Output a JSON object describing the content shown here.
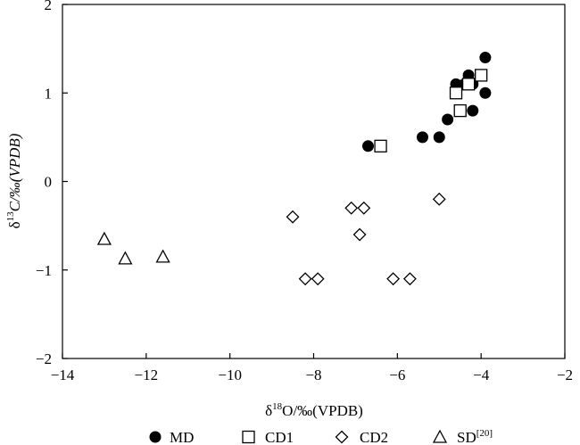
{
  "chart_data": {
    "type": "scatter",
    "xlabel": {
      "prefix": "δ",
      "sup": "18",
      "rest": "O/‰(VPDB)"
    },
    "ylabel": {
      "prefix": "δ",
      "sup": "13",
      "rest": "C/‰(VPDB)"
    },
    "xlim": [
      -14,
      -2
    ],
    "ylim": [
      -2,
      2
    ],
    "xticks": [
      -14,
      -12,
      -10,
      -8,
      -6,
      -4,
      -2
    ],
    "yticks": [
      -2,
      -1,
      0,
      1,
      2
    ],
    "x_tick_labels": [
      "−14",
      "−12",
      "−10",
      "−8",
      "−6",
      "−4",
      "−2"
    ],
    "y_tick_labels": [
      "−2",
      "−1",
      "0",
      "1",
      "2"
    ],
    "grid": false,
    "legend_position": "bottom",
    "series": [
      {
        "name": "MD",
        "marker": "filled-circle",
        "points": [
          {
            "x": -6.7,
            "y": 0.4
          },
          {
            "x": -5.4,
            "y": 0.5
          },
          {
            "x": -5.0,
            "y": 0.5
          },
          {
            "x": -4.8,
            "y": 0.7
          },
          {
            "x": -4.6,
            "y": 1.1
          },
          {
            "x": -4.4,
            "y": 1.1
          },
          {
            "x": -4.3,
            "y": 1.2
          },
          {
            "x": -4.2,
            "y": 0.8
          },
          {
            "x": -4.2,
            "y": 1.1
          },
          {
            "x": -3.9,
            "y": 1.4
          },
          {
            "x": -3.9,
            "y": 1.0
          }
        ]
      },
      {
        "name": "CD1",
        "marker": "open-square",
        "points": [
          {
            "x": -6.4,
            "y": 0.4
          },
          {
            "x": -4.6,
            "y": 1.0
          },
          {
            "x": -4.5,
            "y": 0.8
          },
          {
            "x": -4.3,
            "y": 1.1
          },
          {
            "x": -4.0,
            "y": 1.2
          }
        ]
      },
      {
        "name": "CD2",
        "marker": "open-diamond",
        "points": [
          {
            "x": -8.5,
            "y": -0.4
          },
          {
            "x": -8.2,
            "y": -1.1
          },
          {
            "x": -7.9,
            "y": -1.1
          },
          {
            "x": -7.1,
            "y": -0.3
          },
          {
            "x": -6.8,
            "y": -0.3
          },
          {
            "x": -6.9,
            "y": -0.6
          },
          {
            "x": -6.1,
            "y": -1.1
          },
          {
            "x": -5.7,
            "y": -1.1
          },
          {
            "x": -5.0,
            "y": -0.2
          }
        ]
      },
      {
        "name": "SD",
        "name_sup": "[20]",
        "marker": "open-triangle",
        "points": [
          {
            "x": -13.0,
            "y": -0.65
          },
          {
            "x": -12.5,
            "y": -0.87
          },
          {
            "x": -11.6,
            "y": -0.85
          }
        ]
      }
    ]
  }
}
